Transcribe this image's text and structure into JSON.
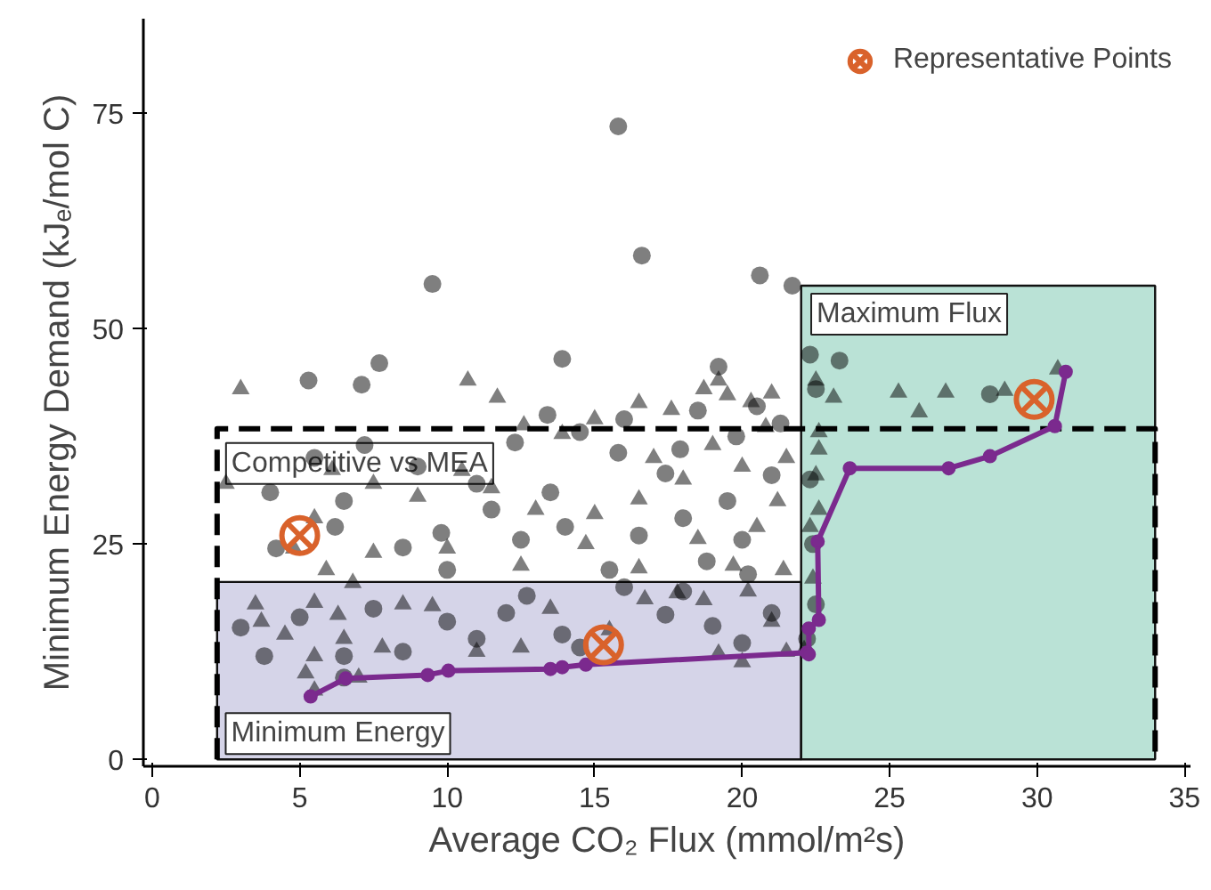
{
  "chart_data": {
    "type": "scatter",
    "xlabel": "Average CO₂ Flux (mmol/m²s)",
    "ylabel": "Minimum Energy Demand (kJₑ/mol C)",
    "xlim": [
      -0.3,
      35.2
    ],
    "ylim": [
      -0.8,
      86
    ],
    "xticks": [
      0,
      5,
      10,
      15,
      20,
      25,
      30,
      35
    ],
    "yticks": [
      0,
      25,
      50,
      75
    ],
    "grid": false,
    "legend": "top right",
    "annotations": [
      {
        "text": "Minimum Energy",
        "x": 2.25,
        "y": 3.0
      },
      {
        "text": "Maximum Flux",
        "x": 22.1,
        "y": 51.7
      }
    ],
    "series": [
      {
        "type": "area",
        "color": "#7570b3",
        "x": [
          2.2,
          22
        ],
        "values": [
          20.6,
          20.6
        ]
      },
      {
        "type": "area",
        "color": "#1b9e77",
        "x": [
          22,
          34
        ],
        "values": [
          55,
          55
        ]
      },
      {
        "type": "line",
        "name": "Competitive vs MEA",
        "color": "#000000",
        "line_style": "dashed",
        "marker": "none",
        "x": [
          2.2,
          2.2,
          34,
          34
        ],
        "values": [
          0,
          38.4,
          38.4,
          0
        ]
      },
      {
        "color": "#000000",
        "marker": "circle",
        "x": [
          15.8,
          16.6,
          20.6,
          21.7,
          9.5,
          7.7,
          5.3,
          7.1,
          13.9,
          19.2,
          23.3,
          28.4,
          22.5,
          4.2,
          3.0,
          4.0,
          6.5,
          9.0,
          11.0,
          12.5,
          14,
          16.5,
          18,
          20,
          10,
          15.5,
          8.5,
          19.5,
          17.4,
          12.3,
          14.5,
          16,
          13.4,
          18.5,
          20.5,
          21.3,
          19.8,
          17.9,
          15.8,
          21,
          20.2,
          18.8,
          13.5,
          11.5,
          7.2,
          5.5,
          6.2,
          9.8,
          3.8,
          5.0,
          6.5,
          8.5,
          10.0,
          12,
          12.7,
          13.9,
          16.0,
          17.4,
          19,
          20,
          18,
          21,
          7.5,
          6.5,
          11,
          14.5,
          22.4,
          22.3,
          22.5,
          22.2,
          22.3
        ],
        "values": [
          73.5,
          58.5,
          56.2,
          55,
          55.2,
          46,
          44,
          43.5,
          46.5,
          45.6,
          46.3,
          42.4,
          43.0,
          24.5,
          15.3,
          31,
          30,
          34,
          32,
          25.5,
          27,
          26,
          28,
          25.5,
          22,
          22,
          24.6,
          30,
          33.2,
          36.8,
          38,
          39.5,
          40,
          40.5,
          41,
          39,
          37.5,
          36,
          35.6,
          33,
          21.5,
          23,
          31,
          29,
          36.5,
          35,
          27,
          26.3,
          12,
          16.5,
          12,
          12.5,
          16,
          17,
          19,
          14.5,
          20,
          16.8,
          15.5,
          13.5,
          19.5,
          17,
          17.5,
          9.5,
          14,
          13.0,
          25,
          32.5,
          18,
          14,
          47
        ]
      },
      {
        "color": "#000000",
        "marker": "triangle",
        "x": [
          3.0,
          10.7,
          19.2,
          21,
          22.5,
          25.3,
          26.9,
          28.9,
          30.7,
          23.1,
          26.0,
          22.6,
          22.6,
          22.5,
          20.3,
          19.5,
          18.7,
          17.6,
          16.5,
          15.0,
          13.9,
          12.6,
          11.7,
          20.8,
          21.5,
          20.0,
          19,
          18,
          17,
          21.2,
          20.5,
          19.7,
          21.4,
          18.5,
          16.5,
          15,
          13,
          11.5,
          10.5,
          9,
          7.5,
          6.1,
          5.5,
          4.8,
          5.9,
          6.8,
          7.5,
          10,
          12.5,
          14.7,
          16.5,
          2.5,
          3.5,
          4.5,
          5.5,
          5.5,
          6.5,
          7.8,
          8.5,
          9.5,
          11,
          12.5,
          13.5,
          15.5,
          16.7,
          17.8,
          18.7,
          20.2,
          21,
          20,
          21.5,
          19.2,
          5.2,
          5.5,
          7,
          22.4,
          22.3,
          22.6,
          22.1,
          6.3,
          3.7
        ],
        "values": [
          43,
          44,
          44,
          42.5,
          44,
          42.6,
          42.6,
          42.8,
          45.3,
          42.0,
          40.3,
          38,
          36,
          33,
          41.5,
          42.3,
          43,
          40.6,
          41.4,
          39.5,
          37.8,
          38.8,
          42,
          38.6,
          35,
          34,
          36.5,
          32.5,
          35,
          30,
          27,
          22.5,
          22,
          25.6,
          30.2,
          28.5,
          29,
          31.5,
          33.5,
          30.5,
          32,
          33.6,
          28,
          24.5,
          22,
          20.5,
          24,
          24.5,
          22.5,
          25,
          22.2,
          32,
          18,
          14.5,
          18.2,
          12,
          14,
          13,
          18,
          17.8,
          12.5,
          13,
          17.5,
          15,
          18.6,
          19.3,
          18.5,
          19.5,
          16,
          11.3,
          12.5,
          12.3,
          10,
          8,
          9.5,
          21,
          27,
          29,
          12.7,
          16.8,
          16
        ]
      },
      {
        "type": "line",
        "color": "#7b2a8e",
        "line_style": "solid",
        "marker": "circle",
        "x": [
          5.37,
          6.56,
          9.34,
          10.04,
          13.5,
          13.9,
          14.7,
          22.2,
          22.26,
          22.26,
          22.6,
          22.56,
          23.65,
          27.0,
          28.4,
          30.6,
          30.97
        ],
        "values": [
          7.3,
          9.4,
          9.8,
          10.3,
          10.5,
          10.7,
          11.0,
          12.4,
          12.2,
          15.2,
          16.2,
          25.3,
          33.8,
          33.8,
          35.2,
          38.7,
          45.0
        ]
      },
      {
        "name": "Representative Points",
        "color": "#d9622b",
        "marker": "cross",
        "x": [
          5.0,
          15.3,
          29.9
        ],
        "values": [
          26.0,
          13.3,
          41.8
        ]
      }
    ]
  }
}
